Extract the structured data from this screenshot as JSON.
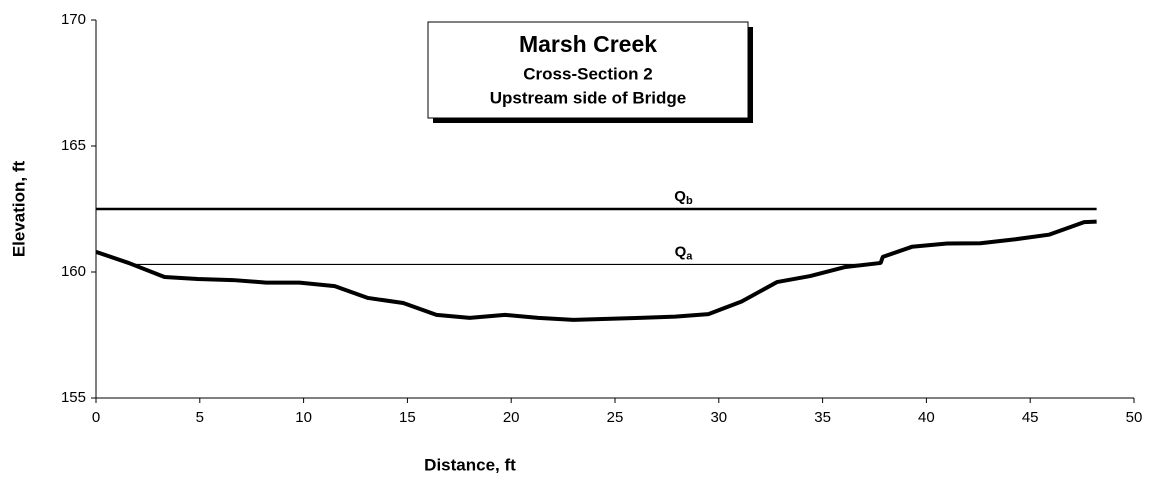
{
  "chart_data": {
    "type": "line",
    "title": "Marsh Creek",
    "subtitle": [
      "Cross-Section 2",
      "Upstream side of Bridge"
    ],
    "xlabel": "Distance, ft",
    "ylabel": "Elevation, ft",
    "xlim": [
      0,
      50
    ],
    "ylim": [
      155,
      170
    ],
    "xticks": [
      0,
      5,
      10,
      15,
      20,
      25,
      30,
      35,
      40,
      45,
      50
    ],
    "yticks": [
      155,
      160,
      165,
      170
    ],
    "series": [
      {
        "color": "#000000",
        "x": [
          0,
          1.6,
          3.3,
          4.9,
          6.6,
          8.2,
          9.8,
          11.5,
          13.1,
          14.8,
          16.4,
          18.0,
          19.7,
          21.3,
          23.0,
          24.6,
          26.2,
          27.9,
          29.5,
          31.1,
          32.8,
          34.4,
          36.1,
          37.7,
          37.8,
          37.9,
          39.3,
          41.0,
          42.6,
          44.3,
          45.9,
          47.6,
          48.2
        ],
        "values": [
          160.8,
          160.35,
          159.8,
          159.72,
          159.68,
          159.58,
          159.58,
          159.44,
          158.97,
          158.77,
          158.3,
          158.18,
          158.3,
          158.18,
          158.1,
          158.14,
          158.18,
          158.23,
          158.33,
          158.83,
          159.6,
          159.84,
          160.2,
          160.35,
          160.37,
          160.6,
          161.0,
          161.13,
          161.14,
          161.3,
          161.48,
          161.98,
          162.0
        ]
      }
    ],
    "water_levels": [
      {
        "label": "Q",
        "subscript": "b",
        "value": 162.5,
        "x": [
          0,
          48.2
        ],
        "label_x": 28.3
      },
      {
        "label": "Q",
        "subscript": "a",
        "value": 160.3,
        "x": [
          1.7,
          37.8
        ],
        "label_x": 28.3
      }
    ]
  }
}
